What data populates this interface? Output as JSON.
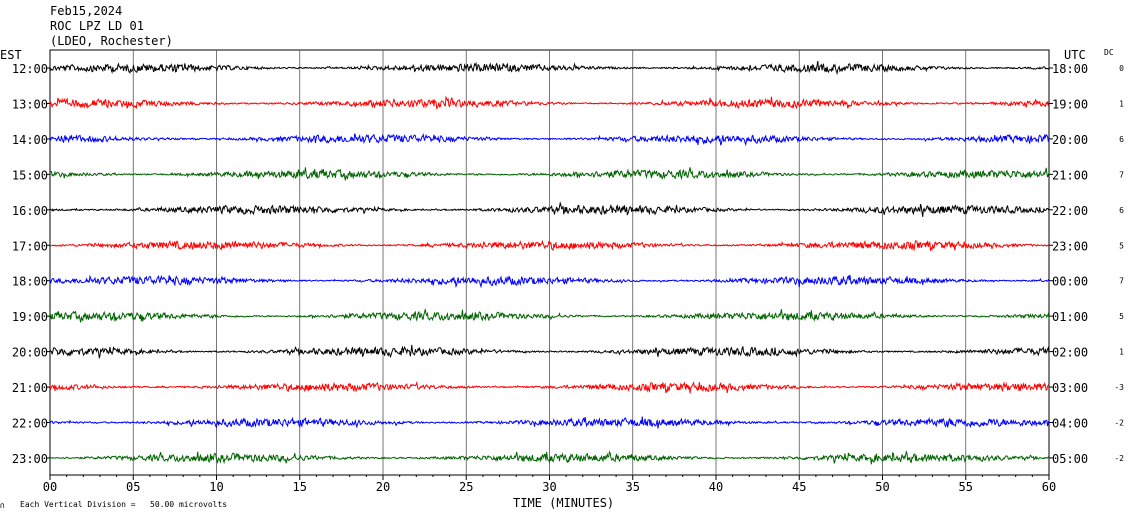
{
  "header": {
    "date": "Feb15,2024",
    "station": "ROC LPZ LD 01",
    "network": "(LDEO, Rochester)"
  },
  "left_axis_title": "EST",
  "right_axis_title": "UTC",
  "dc_title": "DC",
  "footer": {
    "note": "Each Vertical Division =   50.00 microvolts"
  },
  "colors": {
    "black": "#000000",
    "red": "#ff0000",
    "blue": "#0000ff",
    "green": "#006400",
    "grid": "#000000"
  },
  "chart_data": {
    "type": "line",
    "xlabel": "TIME (MINUTES)",
    "xlim": [
      0,
      60
    ],
    "x_ticks": [
      "00",
      "05",
      "10",
      "15",
      "20",
      "25",
      "30",
      "35",
      "40",
      "45",
      "50",
      "55",
      "60"
    ],
    "traces": [
      {
        "est": "12:00",
        "utc": "18:00",
        "dc": "0",
        "color": "#000000"
      },
      {
        "est": "13:00",
        "utc": "19:00",
        "dc": "1",
        "color": "#ff0000"
      },
      {
        "est": "14:00",
        "utc": "20:00",
        "dc": "6",
        "color": "#0000ff"
      },
      {
        "est": "15:00",
        "utc": "21:00",
        "dc": "7",
        "color": "#006400"
      },
      {
        "est": "16:00",
        "utc": "22:00",
        "dc": "6",
        "color": "#000000"
      },
      {
        "est": "17:00",
        "utc": "23:00",
        "dc": "5",
        "color": "#ff0000"
      },
      {
        "est": "18:00",
        "utc": "00:00",
        "dc": "7",
        "color": "#0000ff"
      },
      {
        "est": "19:00",
        "utc": "01:00",
        "dc": "5",
        "color": "#006400"
      },
      {
        "est": "20:00",
        "utc": "02:00",
        "dc": "1",
        "color": "#000000"
      },
      {
        "est": "21:00",
        "utc": "03:00",
        "dc": "-3",
        "color": "#ff0000"
      },
      {
        "est": "22:00",
        "utc": "04:00",
        "dc": "-2",
        "color": "#0000ff"
      },
      {
        "est": "23:00",
        "utc": "05:00",
        "dc": "-2",
        "color": "#006400"
      }
    ]
  }
}
